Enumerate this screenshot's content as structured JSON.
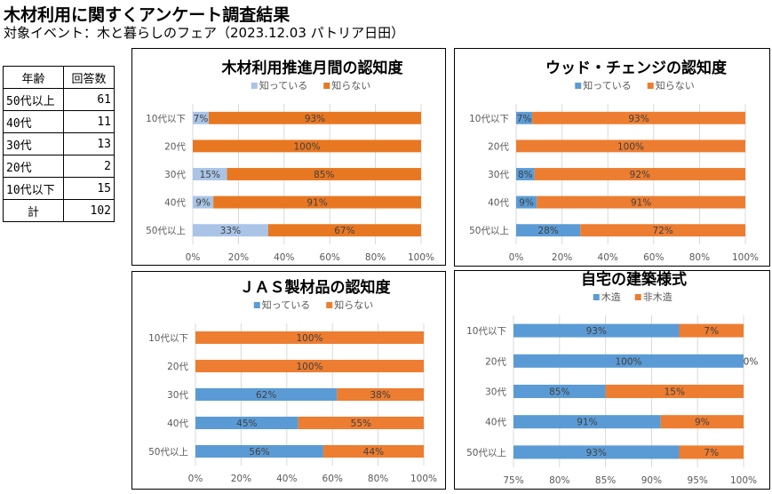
{
  "header": {
    "title": "木材利用に関すくアンケート調査結果",
    "subtitle": "対象イベント：木と暮らしのフェア（2023.12.03 パトリア日田）"
  },
  "respondents_table": {
    "headers": [
      "年齢",
      "回答数"
    ],
    "rows": [
      {
        "age": "50代以上",
        "count": "61"
      },
      {
        "age": "40代",
        "count": "11"
      },
      {
        "age": "30代",
        "count": "13"
      },
      {
        "age": "20代",
        "count": "2"
      },
      {
        "age": "10代以下",
        "count": "15"
      }
    ],
    "total": {
      "label": "計",
      "count": "102"
    }
  },
  "chart_data": [
    {
      "type": "bar",
      "stacked": true,
      "orientation": "horizontal",
      "title": "木材利用推進月間の認知度",
      "categories": [
        "10代以下",
        "20代",
        "30代",
        "40代",
        "50代以上"
      ],
      "series": [
        {
          "name": "知っている",
          "color": "#a9c4e6",
          "values": [
            7,
            0,
            15,
            9,
            33
          ]
        },
        {
          "name": "知らない",
          "color": "#e87722",
          "values": [
            93,
            100,
            85,
            91,
            67
          ]
        }
      ],
      "xlim": [
        0,
        100
      ],
      "xticks": [
        "0%",
        "20%",
        "40%",
        "60%",
        "80%",
        "100%"
      ],
      "xtick_values": [
        0,
        20,
        40,
        60,
        80,
        100
      ],
      "legend": "top",
      "grid": true,
      "xlabel": "",
      "ylabel": ""
    },
    {
      "type": "bar",
      "stacked": true,
      "orientation": "horizontal",
      "title": "ウッド・チェンジの認知度",
      "categories": [
        "10代以下",
        "20代",
        "30代",
        "40代",
        "50代以上"
      ],
      "series": [
        {
          "name": "知っている",
          "color": "#5b9bd5",
          "values": [
            7,
            0,
            8,
            9,
            28
          ]
        },
        {
          "name": "知らない",
          "color": "#ed7d31",
          "values": [
            93,
            100,
            92,
            91,
            72
          ]
        }
      ],
      "xlim": [
        0,
        100
      ],
      "xticks": [
        "0%",
        "20%",
        "40%",
        "60%",
        "80%",
        "100%"
      ],
      "xtick_values": [
        0,
        20,
        40,
        60,
        80,
        100
      ],
      "legend": "top",
      "grid": true,
      "xlabel": "",
      "ylabel": ""
    },
    {
      "type": "bar",
      "stacked": true,
      "orientation": "horizontal",
      "title": "ＪＡＳ製材品の認知度",
      "categories": [
        "10代以下",
        "20代",
        "30代",
        "40代",
        "50代以上"
      ],
      "series": [
        {
          "name": "知っている",
          "color": "#5b9bd5",
          "values": [
            0,
            0,
            62,
            45,
            56
          ]
        },
        {
          "name": "知らない",
          "color": "#ed7d31",
          "values": [
            100,
            100,
            38,
            55,
            44
          ]
        }
      ],
      "xlim": [
        0,
        100
      ],
      "xticks": [
        "0%",
        "20%",
        "40%",
        "60%",
        "80%",
        "100%"
      ],
      "xtick_values": [
        0,
        20,
        40,
        60,
        80,
        100
      ],
      "legend": "top",
      "grid": true,
      "xlabel": "",
      "ylabel": ""
    },
    {
      "type": "bar",
      "stacked": true,
      "orientation": "horizontal",
      "title": "自宅の建築様式",
      "categories": [
        "10代以下",
        "20代",
        "30代",
        "40代",
        "50代以上"
      ],
      "series": [
        {
          "name": "木造",
          "color": "#5b9bd5",
          "values": [
            93,
            100,
            85,
            91,
            93
          ]
        },
        {
          "name": "非木造",
          "color": "#ed7d31",
          "values": [
            7,
            0,
            15,
            9,
            7
          ]
        }
      ],
      "xlim": [
        75,
        100
      ],
      "xticks": [
        "75%",
        "80%",
        "85%",
        "90%",
        "95%",
        "100%"
      ],
      "xtick_values": [
        75,
        80,
        85,
        90,
        95,
        100
      ],
      "legend": "top",
      "grid": true,
      "xlabel": "",
      "ylabel": ""
    }
  ]
}
